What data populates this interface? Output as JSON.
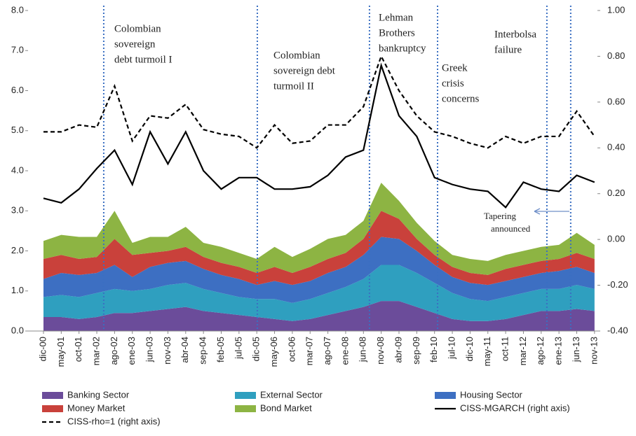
{
  "chart_data": {
    "type": "area",
    "categories": [
      "dic-00",
      "may-01",
      "oct-01",
      "mar-02",
      "ago-02",
      "ene-03",
      "jun-03",
      "nov-03",
      "abr-04",
      "sep-04",
      "feb-05",
      "jul-05",
      "dic-05",
      "may-06",
      "oct-06",
      "mar-07",
      "ago-07",
      "ene-08",
      "jun-08",
      "nov-08",
      "abr-09",
      "sep-09",
      "feb-10",
      "jul-10",
      "dic-10",
      "may-11",
      "oct-11",
      "mar-12",
      "ago-12",
      "ene-13",
      "jun-13",
      "nov-13"
    ],
    "ylim": [
      0,
      8
    ],
    "yticks": [
      {
        "value": 0,
        "label": "0.0"
      },
      {
        "value": 1,
        "label": "1.0"
      },
      {
        "value": 2,
        "label": "2.0"
      },
      {
        "value": 3,
        "label": "3.0"
      },
      {
        "value": 4,
        "label": "4.0"
      },
      {
        "value": 5,
        "label": "5.0"
      },
      {
        "value": 6,
        "label": "6.0"
      },
      {
        "value": 7,
        "label": "7.0"
      },
      {
        "value": 8,
        "label": "8.0"
      }
    ],
    "y2lim": [
      -0.4,
      1.0
    ],
    "y2ticks": [
      {
        "value": -0.4,
        "label": "-0.40"
      },
      {
        "value": -0.2,
        "label": "-0.20"
      },
      {
        "value": 0,
        "label": "0.00"
      },
      {
        "value": 0.2,
        "label": "0.20"
      },
      {
        "value": 0.4,
        "label": "0.40"
      },
      {
        "value": 0.6,
        "label": "0.60"
      },
      {
        "value": 0.8,
        "label": "0.80"
      },
      {
        "value": 1.0,
        "label": "1.00"
      }
    ],
    "series": [
      {
        "name": "Banking Sector",
        "type": "area",
        "color": "#6b4c9a",
        "values": [
          0.35,
          0.35,
          0.3,
          0.35,
          0.45,
          0.45,
          0.5,
          0.55,
          0.6,
          0.5,
          0.45,
          0.4,
          0.35,
          0.3,
          0.25,
          0.3,
          0.4,
          0.5,
          0.6,
          0.75,
          0.75,
          0.6,
          0.45,
          0.3,
          0.25,
          0.25,
          0.3,
          0.4,
          0.5,
          0.5,
          0.55,
          0.5
        ]
      },
      {
        "name": "External Sector",
        "type": "area",
        "color": "#2f9fbf",
        "values": [
          0.5,
          0.55,
          0.55,
          0.6,
          0.6,
          0.55,
          0.55,
          0.6,
          0.6,
          0.55,
          0.5,
          0.45,
          0.45,
          0.5,
          0.45,
          0.5,
          0.55,
          0.6,
          0.7,
          0.9,
          0.9,
          0.85,
          0.75,
          0.65,
          0.55,
          0.5,
          0.55,
          0.55,
          0.55,
          0.55,
          0.6,
          0.55
        ]
      },
      {
        "name": "Housing Sector",
        "type": "area",
        "color": "#3d6fc2",
        "values": [
          0.45,
          0.55,
          0.55,
          0.5,
          0.6,
          0.35,
          0.55,
          0.55,
          0.55,
          0.5,
          0.45,
          0.45,
          0.35,
          0.45,
          0.45,
          0.45,
          0.5,
          0.5,
          0.6,
          0.7,
          0.65,
          0.55,
          0.45,
          0.4,
          0.4,
          0.4,
          0.4,
          0.4,
          0.4,
          0.45,
          0.45,
          0.4
        ]
      },
      {
        "name": "Money Market",
        "type": "area",
        "color": "#c9413b",
        "values": [
          0.5,
          0.45,
          0.4,
          0.4,
          0.65,
          0.55,
          0.35,
          0.3,
          0.35,
          0.3,
          0.3,
          0.3,
          0.3,
          0.35,
          0.3,
          0.35,
          0.35,
          0.35,
          0.4,
          0.65,
          0.5,
          0.3,
          0.25,
          0.25,
          0.25,
          0.25,
          0.3,
          0.3,
          0.3,
          0.3,
          0.35,
          0.35
        ]
      },
      {
        "name": "Bond Market",
        "type": "area",
        "color": "#8db443",
        "values": [
          0.45,
          0.5,
          0.55,
          0.5,
          0.7,
          0.3,
          0.4,
          0.35,
          0.5,
          0.35,
          0.4,
          0.35,
          0.35,
          0.5,
          0.4,
          0.45,
          0.5,
          0.45,
          0.45,
          0.7,
          0.45,
          0.4,
          0.35,
          0.3,
          0.35,
          0.35,
          0.35,
          0.35,
          0.35,
          0.35,
          0.5,
          0.35
        ]
      },
      {
        "name": "CISS-MGARCH (right axis)",
        "type": "line",
        "axis": "y2",
        "dashed": false,
        "color": "#000000",
        "values": [
          0.18,
          0.16,
          0.22,
          0.31,
          0.39,
          0.24,
          0.47,
          0.33,
          0.47,
          0.3,
          0.22,
          0.27,
          0.27,
          0.22,
          0.22,
          0.23,
          0.28,
          0.36,
          0.39,
          0.76,
          0.54,
          0.45,
          0.27,
          0.24,
          0.22,
          0.21,
          0.14,
          0.25,
          0.22,
          0.21,
          0.28,
          0.25
        ]
      },
      {
        "name": "CISS-rho=1 (right axis)",
        "type": "line",
        "axis": "y2",
        "dashed": true,
        "color": "#000000",
        "values": [
          0.47,
          0.47,
          0.5,
          0.49,
          0.67,
          0.43,
          0.54,
          0.53,
          0.59,
          0.48,
          0.46,
          0.45,
          0.4,
          0.5,
          0.42,
          0.43,
          0.5,
          0.5,
          0.58,
          0.8,
          0.65,
          0.54,
          0.47,
          0.45,
          0.42,
          0.4,
          0.45,
          0.42,
          0.45,
          0.45,
          0.56,
          0.45
        ]
      }
    ],
    "annotations": [
      [
        "Colombian",
        "sovereign",
        "debt turmoil I"
      ],
      [
        "Colombian",
        "sovereign debt",
        "turmoil II"
      ],
      [
        "Lehman",
        "Brothers",
        "bankruptcy"
      ],
      [
        "Greek",
        "crisis",
        "concerns"
      ],
      [
        "Interbolsa",
        "failure"
      ],
      [
        "Tapering",
        "announced"
      ]
    ]
  }
}
